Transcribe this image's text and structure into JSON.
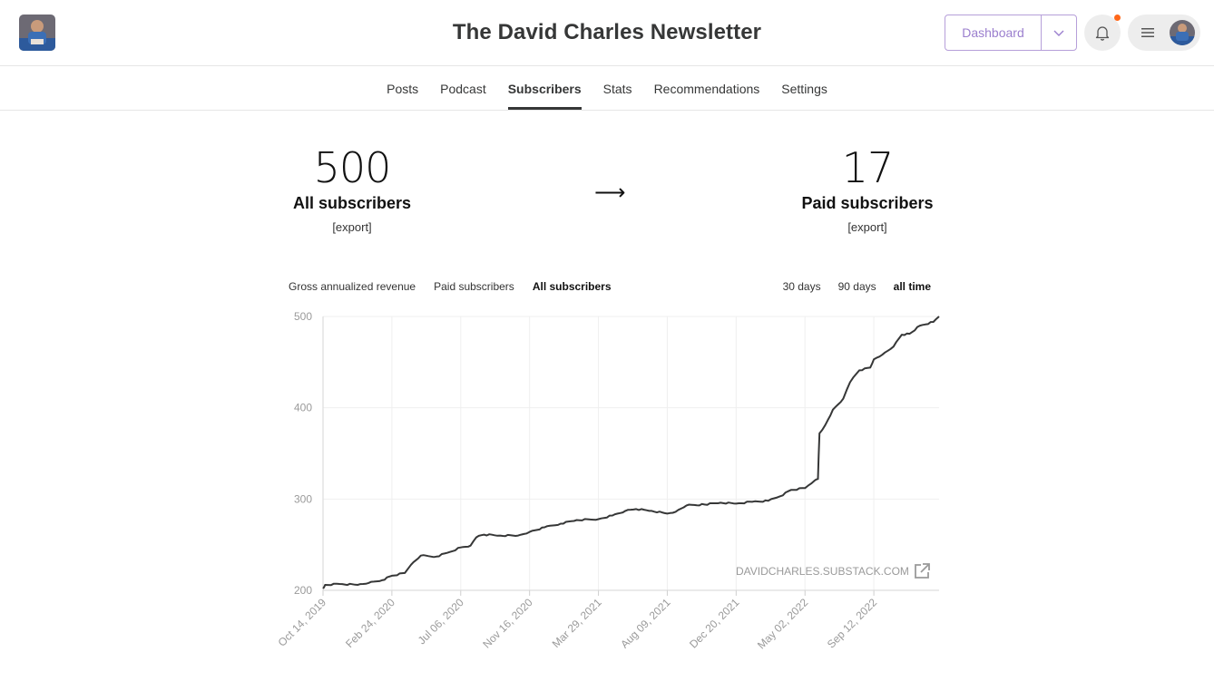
{
  "header": {
    "title": "The David Charles Newsletter",
    "dashboard_label": "Dashboard"
  },
  "nav": {
    "tabs": [
      {
        "label": "Posts",
        "active": false
      },
      {
        "label": "Podcast",
        "active": false
      },
      {
        "label": "Subscribers",
        "active": true
      },
      {
        "label": "Stats",
        "active": false
      },
      {
        "label": "Recommendations",
        "active": false
      },
      {
        "label": "Settings",
        "active": false
      }
    ]
  },
  "stats": {
    "all": {
      "value": "500",
      "label": "All subscribers",
      "export": "[export]"
    },
    "arrow": "⟶",
    "paid": {
      "value": "17",
      "label": "Paid subscribers",
      "export": "[export]"
    }
  },
  "chart_controls": {
    "metrics": [
      "Gross annualized revenue",
      "Paid subscribers",
      "All subscribers"
    ],
    "active_metric": "All subscribers",
    "ranges": [
      "30 days",
      "90 days",
      "all time"
    ],
    "active_range": "all time"
  },
  "watermark": "DAVIDCHARLES.SUBSTACK.COM",
  "colors": {
    "accent": "#9b7fce",
    "notification": "#ff6719",
    "line": "#363737"
  },
  "chart_data": {
    "type": "line",
    "title": "",
    "xlabel": "",
    "ylabel": "",
    "ylim": [
      200,
      500
    ],
    "yticks": [
      200,
      300,
      400,
      500
    ],
    "xticks": [
      "Oct 14, 2019",
      "Feb 24, 2020",
      "Jul 06, 2020",
      "Nov 16, 2020",
      "Mar 29, 2021",
      "Aug 09, 2021",
      "Dec 20, 2021",
      "May 02, 2022",
      "Sep 12, 2022"
    ],
    "xlim": [
      "2019-10-14",
      "2023-01-16"
    ],
    "grid": true,
    "series": [
      {
        "points": [
          [
            "2019-10-14",
            202
          ],
          [
            "2019-10-18",
            206
          ],
          [
            "2019-11-15",
            207
          ],
          [
            "2019-12-20",
            206
          ],
          [
            "2020-01-10",
            208
          ],
          [
            "2020-02-05",
            211
          ],
          [
            "2020-02-24",
            216
          ],
          [
            "2020-03-20",
            219
          ],
          [
            "2020-04-01",
            228
          ],
          [
            "2020-04-20",
            238
          ],
          [
            "2020-05-20",
            237
          ],
          [
            "2020-06-15",
            242
          ],
          [
            "2020-07-06",
            247
          ],
          [
            "2020-07-25",
            249
          ],
          [
            "2020-08-05",
            258
          ],
          [
            "2020-08-20",
            261
          ],
          [
            "2020-09-20",
            260
          ],
          [
            "2020-10-25",
            260
          ],
          [
            "2020-11-16",
            264
          ],
          [
            "2020-12-15",
            269
          ],
          [
            "2021-01-15",
            273
          ],
          [
            "2021-02-15",
            277
          ],
          [
            "2021-03-29",
            278
          ],
          [
            "2021-04-25",
            282
          ],
          [
            "2021-05-20",
            287
          ],
          [
            "2021-06-10",
            289
          ],
          [
            "2021-07-10",
            287
          ],
          [
            "2021-08-09",
            284
          ],
          [
            "2021-08-25",
            286
          ],
          [
            "2021-09-15",
            293
          ],
          [
            "2021-10-20",
            294
          ],
          [
            "2021-11-20",
            296
          ],
          [
            "2021-12-20",
            295
          ],
          [
            "2022-01-20",
            297
          ],
          [
            "2022-02-20",
            298
          ],
          [
            "2022-03-15",
            303
          ],
          [
            "2022-04-05",
            310
          ],
          [
            "2022-05-02",
            312
          ],
          [
            "2022-05-20",
            320
          ],
          [
            "2022-05-27",
            322
          ],
          [
            "2022-05-30",
            372
          ],
          [
            "2022-06-10",
            381
          ],
          [
            "2022-06-25",
            398
          ],
          [
            "2022-07-15",
            410
          ],
          [
            "2022-07-28",
            428
          ],
          [
            "2022-08-15",
            441
          ],
          [
            "2022-09-05",
            444
          ],
          [
            "2022-09-12",
            453
          ],
          [
            "2022-09-28",
            458
          ],
          [
            "2022-10-20",
            467
          ],
          [
            "2022-11-05",
            480
          ],
          [
            "2022-11-20",
            481
          ],
          [
            "2022-12-10",
            490
          ],
          [
            "2023-01-05",
            494
          ],
          [
            "2023-01-16",
            500
          ]
        ]
      }
    ]
  }
}
